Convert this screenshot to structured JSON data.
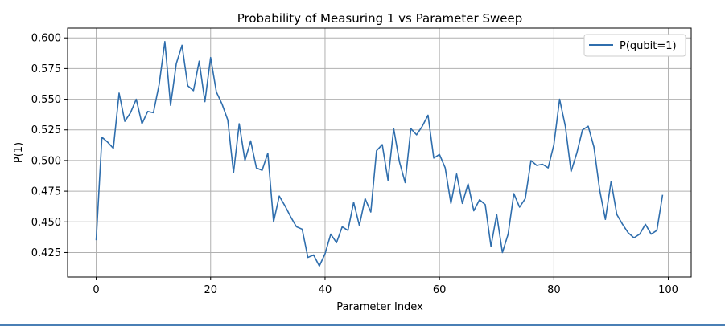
{
  "chart_data": {
    "type": "line",
    "title": "Probability of Measuring 1 vs Parameter Sweep",
    "xlabel": "Parameter Index",
    "ylabel": "P(1)",
    "xlim": [
      -5,
      104
    ],
    "ylim": [
      0.405,
      0.608
    ],
    "xticks": [
      "0",
      "20",
      "40",
      "60",
      "80",
      "100"
    ],
    "yticks": [
      "0.425",
      "0.450",
      "0.475",
      "0.500",
      "0.525",
      "0.550",
      "0.575",
      "0.600"
    ],
    "grid": true,
    "legend_position": "top-right",
    "series": [
      {
        "name": "P(qubit=1)",
        "color": "#2f6ead",
        "x": [
          0,
          1,
          2,
          3,
          4,
          5,
          6,
          7,
          8,
          9,
          10,
          11,
          12,
          13,
          14,
          15,
          16,
          17,
          18,
          19,
          20,
          21,
          22,
          23,
          24,
          25,
          26,
          27,
          28,
          29,
          30,
          31,
          32,
          33,
          34,
          35,
          36,
          37,
          38,
          39,
          40,
          41,
          42,
          43,
          44,
          45,
          46,
          47,
          48,
          49,
          50,
          51,
          52,
          53,
          54,
          55,
          56,
          57,
          58,
          59,
          60,
          61,
          62,
          63,
          64,
          65,
          66,
          67,
          68,
          69,
          70,
          71,
          72,
          73,
          74,
          75,
          76,
          77,
          78,
          79,
          80,
          81,
          82,
          83,
          84,
          85,
          86,
          87,
          88,
          89,
          90,
          91,
          92,
          93,
          94,
          95,
          96,
          97,
          98,
          99
        ],
        "values": [
          0.435,
          0.519,
          0.515,
          0.51,
          0.555,
          0.532,
          0.539,
          0.55,
          0.53,
          0.54,
          0.539,
          0.562,
          0.597,
          0.545,
          0.579,
          0.594,
          0.561,
          0.557,
          0.581,
          0.548,
          0.584,
          0.556,
          0.546,
          0.533,
          0.49,
          0.53,
          0.5,
          0.516,
          0.494,
          0.492,
          0.506,
          0.45,
          0.471,
          0.463,
          0.454,
          0.446,
          0.444,
          0.421,
          0.423,
          0.414,
          0.424,
          0.44,
          0.433,
          0.446,
          0.443,
          0.466,
          0.447,
          0.469,
          0.458,
          0.508,
          0.513,
          0.484,
          0.526,
          0.499,
          0.482,
          0.526,
          0.521,
          0.528,
          0.537,
          0.502,
          0.505,
          0.494,
          0.465,
          0.489,
          0.465,
          0.481,
          0.459,
          0.468,
          0.464,
          0.43,
          0.456,
          0.425,
          0.44,
          0.473,
          0.462,
          0.469,
          0.5,
          0.496,
          0.497,
          0.494,
          0.513,
          0.55,
          0.528,
          0.491,
          0.506,
          0.525,
          0.528,
          0.511,
          0.476,
          0.452,
          0.483,
          0.456,
          0.448,
          0.441,
          0.437,
          0.44,
          0.448,
          0.44,
          0.443,
          0.472
        ]
      }
    ]
  }
}
